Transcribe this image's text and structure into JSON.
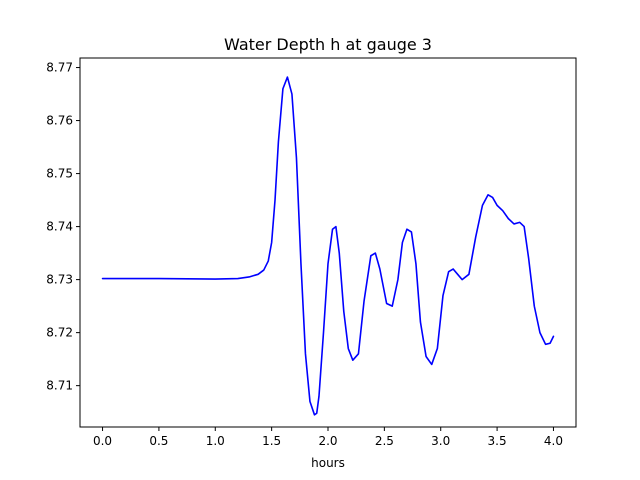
{
  "chart_data": {
    "type": "line",
    "title": "Water Depth h at gauge 3",
    "xlabel": "hours",
    "ylabel": "",
    "xlim": [
      -0.2,
      4.2
    ],
    "ylim": [
      8.7022,
      8.7718
    ],
    "xticks": [
      0.0,
      0.5,
      1.0,
      1.5,
      2.0,
      2.5,
      3.0,
      3.5,
      4.0
    ],
    "xtick_labels": [
      "0.0",
      "0.5",
      "1.0",
      "1.5",
      "2.0",
      "2.5",
      "3.0",
      "3.5",
      "4.0"
    ],
    "yticks": [
      8.71,
      8.72,
      8.73,
      8.74,
      8.75,
      8.76,
      8.77
    ],
    "ytick_labels": [
      "8.71",
      "8.72",
      "8.73",
      "8.74",
      "8.75",
      "8.76",
      "8.77"
    ],
    "grid": false,
    "series": [
      {
        "color": "#0000ff",
        "x": [
          0.0,
          0.5,
          1.0,
          1.2,
          1.3,
          1.38,
          1.43,
          1.47,
          1.5,
          1.53,
          1.56,
          1.6,
          1.64,
          1.68,
          1.72,
          1.76,
          1.8,
          1.84,
          1.88,
          1.9,
          1.92,
          1.96,
          2.0,
          2.04,
          2.07,
          2.1,
          2.14,
          2.18,
          2.22,
          2.27,
          2.32,
          2.38,
          2.42,
          2.46,
          2.52,
          2.57,
          2.62,
          2.66,
          2.7,
          2.74,
          2.78,
          2.82,
          2.87,
          2.92,
          2.97,
          3.02,
          3.07,
          3.11,
          3.15,
          3.19,
          3.25,
          3.31,
          3.37,
          3.42,
          3.46,
          3.5,
          3.55,
          3.6,
          3.65,
          3.7,
          3.74,
          3.78,
          3.83,
          3.88,
          3.93,
          3.97,
          4.0
        ],
        "y": [
          8.7302,
          8.7302,
          8.7301,
          8.7302,
          8.7305,
          8.731,
          8.7318,
          8.7335,
          8.737,
          8.745,
          8.756,
          8.766,
          8.7682,
          8.765,
          8.753,
          8.733,
          8.716,
          8.707,
          8.7045,
          8.7048,
          8.708,
          8.72,
          8.733,
          8.7395,
          8.74,
          8.735,
          8.724,
          8.717,
          8.7148,
          8.716,
          8.726,
          8.7345,
          8.735,
          8.732,
          8.7255,
          8.725,
          8.73,
          8.737,
          8.7395,
          8.739,
          8.733,
          8.722,
          8.7155,
          8.714,
          8.717,
          8.727,
          8.7315,
          8.732,
          8.731,
          8.73,
          8.731,
          8.738,
          8.744,
          8.746,
          8.7455,
          8.744,
          8.743,
          8.7415,
          8.7405,
          8.7408,
          8.74,
          8.734,
          8.725,
          8.72,
          8.7178,
          8.718,
          8.7193
        ]
      }
    ]
  }
}
